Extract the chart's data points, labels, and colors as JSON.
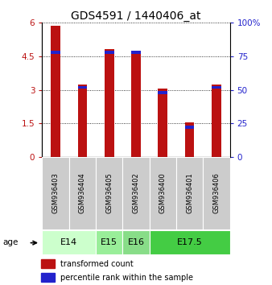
{
  "title": "GDS4591 / 1440406_at",
  "samples": [
    "GSM936403",
    "GSM936404",
    "GSM936405",
    "GSM936402",
    "GSM936400",
    "GSM936401",
    "GSM936406"
  ],
  "transformed_counts": [
    5.85,
    3.25,
    4.82,
    4.68,
    3.05,
    1.55,
    3.25
  ],
  "percentile_ranks_pct": [
    78,
    52,
    78,
    78,
    48,
    22,
    52
  ],
  "age_groups": [
    {
      "label": "E14",
      "span": [
        0,
        2
      ],
      "color": "#ccffcc"
    },
    {
      "label": "E15",
      "span": [
        2,
        3
      ],
      "color": "#99ee99"
    },
    {
      "label": "E16",
      "span": [
        3,
        4
      ],
      "color": "#88dd88"
    },
    {
      "label": "E17.5",
      "span": [
        4,
        7
      ],
      "color": "#44cc44"
    }
  ],
  "ylim_left": [
    0,
    6
  ],
  "ylim_right": [
    0,
    100
  ],
  "yticks_left": [
    0,
    1.5,
    3,
    4.5,
    6
  ],
  "yticks_right": [
    0,
    25,
    50,
    75,
    100
  ],
  "bar_color_red": "#bb1111",
  "bar_color_blue": "#2222cc",
  "bar_width": 0.35,
  "bg_color": "#ffffff",
  "title_fontsize": 10,
  "tick_fontsize": 7.5,
  "sample_fontsize": 6,
  "age_fontsize": 8,
  "legend_fontsize": 7
}
